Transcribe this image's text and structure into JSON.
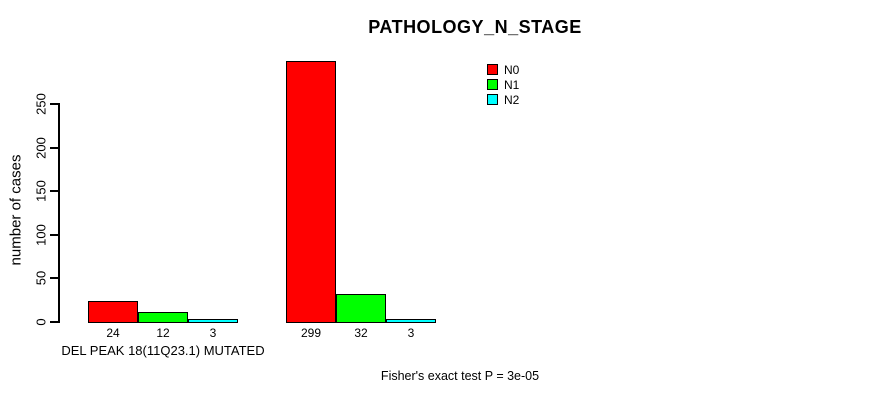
{
  "page": {
    "background": "#ffffff",
    "text_color": "#000000"
  },
  "chart_data": {
    "type": "bar",
    "title": "PATHOLOGY_N_STAGE",
    "ylabel": "number of cases",
    "xlabel": "DEL PEAK 18(11Q23.1) MUTATED",
    "annotation": "Fisher's exact test P = 3e-05",
    "categories": [
      "DEL PEAK 18(11Q23.1) MUTATED",
      ""
    ],
    "series": [
      {
        "name": "N0",
        "color": "#ff0000",
        "values": [
          24,
          299
        ]
      },
      {
        "name": "N1",
        "color": "#00ff00",
        "values": [
          12,
          32
        ]
      },
      {
        "name": "N2",
        "color": "#00ffff",
        "values": [
          3,
          3
        ]
      }
    ],
    "bar_value_labels": [
      [
        24,
        12,
        3
      ],
      [
        299,
        32,
        3
      ]
    ],
    "yticks": [
      0,
      50,
      100,
      150,
      200,
      250
    ],
    "ylim": [
      0,
      250
    ],
    "grid": false,
    "legend_position": "top-right",
    "axis_color": "#000000"
  }
}
